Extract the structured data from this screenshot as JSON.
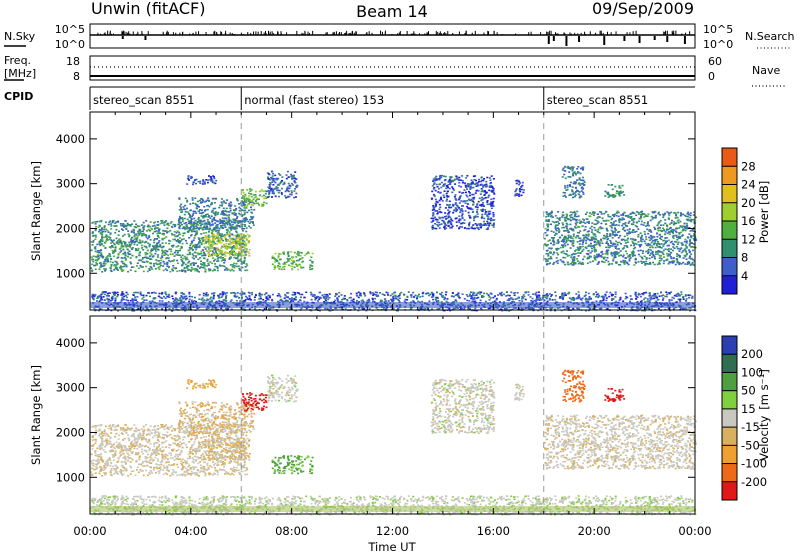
{
  "header": {
    "station": "Unwin (fitACF)",
    "beam": "Beam 14",
    "date": "09/Sep/2009"
  },
  "nsky": {
    "label": "N.Sky",
    "ticks": [
      "10^5",
      "10^0"
    ]
  },
  "nsearch": {
    "label": "N.Search",
    "ticks": [
      "10^5",
      "10^0"
    ]
  },
  "freq": {
    "label_line1": "Freq.",
    "label_line2": "[MHz]",
    "ticks": [
      "18",
      "8"
    ]
  },
  "nave": {
    "label": "Nave",
    "ticks": [
      "60",
      "0"
    ]
  },
  "cpid": {
    "label": "CPID",
    "segments": [
      {
        "name": "stereo_scan 8551",
        "start_hr": 0,
        "end_hr": 6
      },
      {
        "name": "normal (fast stereo) 153",
        "start_hr": 6,
        "end_hr": 18
      },
      {
        "name": "stereo_scan 8551",
        "start_hr": 18,
        "end_hr": 24
      }
    ]
  },
  "axes": {
    "xlabel": "Time UT",
    "ylabel_top": "Slant Range [km]",
    "ylabel_bottom": "Slant Range [km]",
    "xticks": [
      "00:00",
      "04:00",
      "08:00",
      "12:00",
      "16:00",
      "20:00",
      "00:00"
    ],
    "yticks": [
      "1000",
      "2000",
      "3000",
      "4000"
    ]
  },
  "power_colorbar": {
    "label": "Power [dB]",
    "ticks": [
      "4",
      "8",
      "12",
      "16",
      "20",
      "24",
      "28"
    ]
  },
  "velocity_colorbar": {
    "label_main": "Velocity",
    "label_unit": "[m s⁻¹]",
    "ticks": [
      "200",
      "100",
      "50",
      "15",
      "-15",
      "-50",
      "-100",
      "-200"
    ]
  },
  "chart_data": {
    "type": "heatmap",
    "title": "Unwin (fitACF)  Beam 14  09/Sep/2009",
    "xlabel": "Time UT",
    "ylabel": "Slant Range [km]",
    "xlim_hours": [
      0,
      24
    ],
    "ylim_km": [
      180,
      4600
    ],
    "grid": false,
    "power_scale_db": [
      0,
      32
    ],
    "velocity_scale_ms": [
      -250,
      250
    ],
    "scatter_regions": [
      {
        "start_hr": 0.0,
        "end_hr": 6.2,
        "range_km": [
          1050,
          2200
        ],
        "power_db": 10,
        "velocity_ms": -10
      },
      {
        "start_hr": 4.5,
        "end_hr": 6.3,
        "range_km": [
          1400,
          1900
        ],
        "power_db": 19,
        "velocity_ms": -20
      },
      {
        "start_hr": 3.5,
        "end_hr": 6.5,
        "range_km": [
          2000,
          2700
        ],
        "power_db": 8,
        "velocity_ms": -20
      },
      {
        "start_hr": 3.8,
        "end_hr": 5.0,
        "range_km": [
          3000,
          3200
        ],
        "power_db": 5,
        "velocity_ms": -40
      },
      {
        "start_hr": 6.0,
        "end_hr": 7.0,
        "range_km": [
          2500,
          2900
        ],
        "power_db": 15,
        "velocity_ms": -200
      },
      {
        "start_hr": 7.0,
        "end_hr": 8.2,
        "range_km": [
          2700,
          3300
        ],
        "power_db": 6,
        "velocity_ms": 0
      },
      {
        "start_hr": 7.2,
        "end_hr": 8.8,
        "range_km": [
          1100,
          1500
        ],
        "power_db": 14,
        "velocity_ms": 40
      },
      {
        "start_hr": 13.5,
        "end_hr": 16.0,
        "range_km": [
          2000,
          3200
        ],
        "power_db": 5,
        "velocity_ms": 0
      },
      {
        "start_hr": 16.8,
        "end_hr": 17.2,
        "range_km": [
          2700,
          3100
        ],
        "power_db": 5,
        "velocity_ms": 0
      },
      {
        "start_hr": 18.0,
        "end_hr": 24.0,
        "range_km": [
          1200,
          2400
        ],
        "power_db": 9,
        "velocity_ms": -5
      },
      {
        "start_hr": 18.7,
        "end_hr": 19.6,
        "range_km": [
          2700,
          3400
        ],
        "power_db": 8,
        "velocity_ms": -120
      },
      {
        "start_hr": 20.4,
        "end_hr": 21.2,
        "range_km": [
          2700,
          3000
        ],
        "power_db": 10,
        "velocity_ms": -220
      },
      {
        "start_hr": 0.0,
        "end_hr": 24.0,
        "range_km": [
          180,
          600
        ],
        "power_db": 6,
        "velocity_ms": 5
      }
    ]
  }
}
